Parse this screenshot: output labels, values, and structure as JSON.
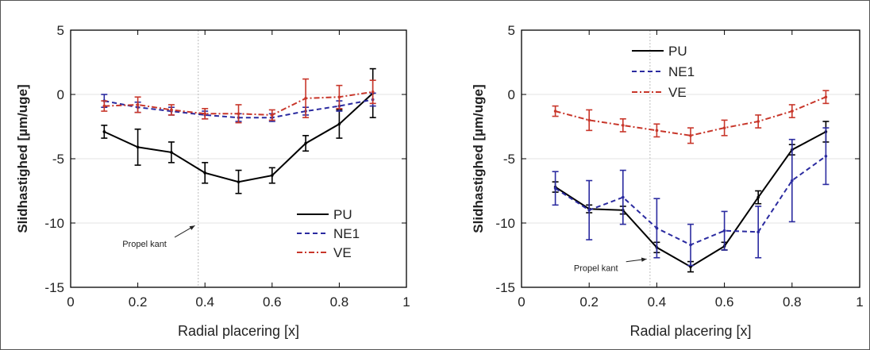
{
  "chart_data": [
    {
      "type": "line",
      "xlabel": "Radial  placering [x]",
      "ylabel": "Slidhastighed  [µm/uge]",
      "xlim": [
        0,
        1
      ],
      "ylim": [
        -15,
        5
      ],
      "xticks": [
        0,
        0.2,
        0.4,
        0.6,
        0.8,
        1
      ],
      "xtick_labels": [
        "0",
        "0.2",
        "0.4",
        "0.6",
        "0.8",
        "1"
      ],
      "yticks": [
        -15,
        -10,
        -5,
        0,
        5
      ],
      "ytick_labels": [
        "-15",
        "-10",
        "-5",
        "0",
        "5"
      ],
      "grid": true,
      "legend_position": "bottom-right",
      "vline_x": 0.38,
      "annotation": {
        "text": "Propel kant",
        "x": 0.22,
        "y": -11.6,
        "arrow_to": [
          0.37,
          -10.2
        ]
      },
      "x": [
        0.1,
        0.2,
        0.3,
        0.4,
        0.5,
        0.6,
        0.7,
        0.8,
        0.9
      ],
      "series": [
        {
          "name": "PU",
          "color": "#000000",
          "dash": "solid",
          "values": [
            -2.9,
            -4.1,
            -4.5,
            -6.1,
            -6.8,
            -6.3,
            -3.8,
            -2.3,
            0.1
          ],
          "errors": [
            0.5,
            1.4,
            0.8,
            0.8,
            0.9,
            0.6,
            0.6,
            1.1,
            1.9
          ]
        },
        {
          "name": "NE1",
          "color": "#2b2ba0",
          "dash": "dashed",
          "values": [
            -0.5,
            -1.0,
            -1.3,
            -1.6,
            -1.8,
            -1.8,
            -1.3,
            -0.9,
            -0.4
          ],
          "errors": [
            0.5,
            0.4,
            0.3,
            0.3,
            0.3,
            0.3,
            0.3,
            0.4,
            0.5
          ]
        },
        {
          "name": "VE",
          "color": "#c8362a",
          "dash": "dashdot",
          "values": [
            -0.9,
            -0.8,
            -1.2,
            -1.5,
            -1.5,
            -1.6,
            -0.3,
            -0.2,
            0.2
          ],
          "errors": [
            0.4,
            0.6,
            0.4,
            0.4,
            0.7,
            0.4,
            1.5,
            0.9,
            0.9
          ]
        }
      ]
    },
    {
      "type": "line",
      "xlabel": "Radial  placering [x]",
      "ylabel": "Slidhastighed  [µm/uge]",
      "xlim": [
        0,
        1
      ],
      "ylim": [
        -15,
        5
      ],
      "xticks": [
        0,
        0.2,
        0.4,
        0.6,
        0.8,
        1
      ],
      "xtick_labels": [
        "0",
        "0.2",
        "0.4",
        "0.6",
        "0.8",
        "1"
      ],
      "yticks": [
        -15,
        -10,
        -5,
        0,
        5
      ],
      "ytick_labels": [
        "-15",
        "-10",
        "-5",
        "0",
        "5"
      ],
      "grid": true,
      "legend_position": "top-left",
      "vline_x": 0.38,
      "annotation": {
        "text": "Propel kant",
        "x": 0.22,
        "y": -13.5,
        "arrow_to": [
          0.37,
          -12.8
        ]
      },
      "x": [
        0.1,
        0.2,
        0.3,
        0.4,
        0.5,
        0.6,
        0.7,
        0.8,
        0.9
      ],
      "series": [
        {
          "name": "PU",
          "color": "#000000",
          "dash": "solid",
          "values": [
            -7.2,
            -8.9,
            -9.0,
            -11.9,
            -13.4,
            -11.8,
            -8.0,
            -4.3,
            -2.9
          ],
          "errors": [
            0.4,
            0.3,
            0.3,
            0.4,
            0.4,
            0.3,
            0.5,
            0.4,
            0.8
          ]
        },
        {
          "name": "NE1",
          "color": "#2b2ba0",
          "dash": "dashed",
          "values": [
            -7.3,
            -9.0,
            -8.0,
            -10.4,
            -11.7,
            -10.6,
            -10.7,
            -6.7,
            -4.8
          ],
          "errors": [
            1.3,
            2.3,
            2.1,
            2.3,
            1.6,
            1.5,
            2.0,
            3.2,
            2.2
          ]
        },
        {
          "name": "VE",
          "color": "#c8362a",
          "dash": "dashdot",
          "values": [
            -1.3,
            -2.0,
            -2.4,
            -2.8,
            -3.2,
            -2.6,
            -2.1,
            -1.3,
            -0.2
          ],
          "errors": [
            0.4,
            0.8,
            0.5,
            0.5,
            0.6,
            0.6,
            0.5,
            0.5,
            0.5
          ]
        }
      ]
    }
  ]
}
